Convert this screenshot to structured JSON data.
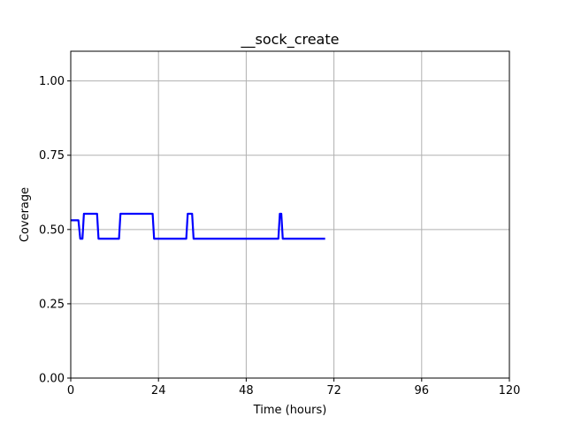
{
  "chart_data": {
    "type": "line",
    "title": "__sock_create",
    "xlabel": "Time (hours)",
    "ylabel": "Coverage",
    "xlim": [
      0,
      120
    ],
    "ylim": [
      0,
      1.1
    ],
    "xticks": [
      0,
      24,
      48,
      72,
      96,
      120
    ],
    "xtick_labels": [
      "0",
      "24",
      "48",
      "72",
      "96",
      "120"
    ],
    "yticks": [
      0,
      0.25,
      0.5,
      0.75,
      1.0
    ],
    "ytick_labels": [
      "0.00",
      "0.25",
      "0.50",
      "0.75",
      "1.00"
    ],
    "grid": true,
    "series": [
      {
        "color": "#0000ff",
        "x": [
          0,
          2.1,
          2.6,
          3.2,
          3.6,
          7.2,
          7.6,
          13.2,
          13.6,
          22.4,
          22.8,
          31.6,
          32.0,
          33.2,
          33.6,
          56.8,
          57.2,
          57.6,
          58.0,
          69.6
        ],
        "y": [
          0.531,
          0.531,
          0.469,
          0.469,
          0.553,
          0.553,
          0.469,
          0.469,
          0.553,
          0.553,
          0.469,
          0.469,
          0.553,
          0.553,
          0.469,
          0.469,
          0.553,
          0.553,
          0.469,
          0.469
        ]
      }
    ]
  }
}
